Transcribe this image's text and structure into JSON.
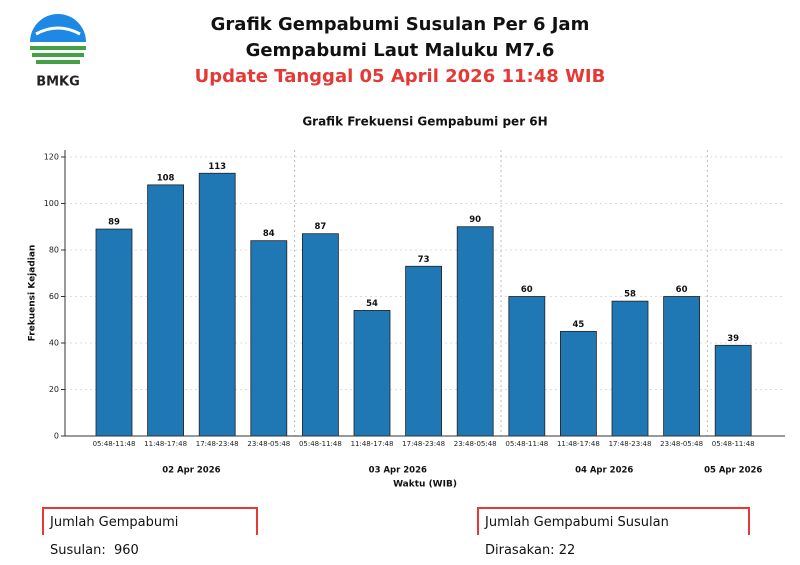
{
  "header": {
    "logo_text": "BMKG",
    "title": "Grafik Gempabumi Susulan Per 6 Jam",
    "subtitle": "Gempabumi Laut Maluku M7.6",
    "update": "Update Tanggal 05 April 2026 11:48 WIB"
  },
  "chart_data": {
    "type": "bar",
    "title": "Grafik Frekuensi Gempabumi per 6H",
    "x_label": "Waktu (WIB)",
    "y_label": "Frekuensi Kejadian",
    "categories": [
      "05:48-11:48",
      "11:48-17:48",
      "17:48-23:48",
      "23:48-05:48",
      "05:48-11:48",
      "11:48-17:48",
      "17:48-23:48",
      "23:48-05:48",
      "05:48-11:48",
      "11:48-17:48",
      "17:48-23:48",
      "23:48-05:48",
      "05:48-11:48"
    ],
    "dates": [
      "02 Apr 2026",
      "02 Apr 2026",
      "02 Apr 2026",
      "02 Apr 2026",
      "03 Apr 2026",
      "03 Apr 2026",
      "03 Apr 2026",
      "03 Apr 2026",
      "04 Apr 2026",
      "04 Apr 2026",
      "04 Apr 2026",
      "04 Apr 2026",
      "05 Apr 2026"
    ],
    "values": [
      89,
      108,
      113,
      84,
      87,
      54,
      73,
      90,
      60,
      45,
      58,
      60,
      39
    ],
    "color": "#1f77b4",
    "ylim": [
      0,
      123
    ],
    "yticks": [
      0,
      20,
      40,
      60,
      80,
      100,
      120
    ],
    "grid": true,
    "value_labels_shown": true
  },
  "summary": [
    {
      "label": "Jumlah Gempabumi Susulan:",
      "value": 960
    },
    {
      "label": "Jumlah Gempabumi Susulan Dirasakan:",
      "value": 22
    }
  ]
}
